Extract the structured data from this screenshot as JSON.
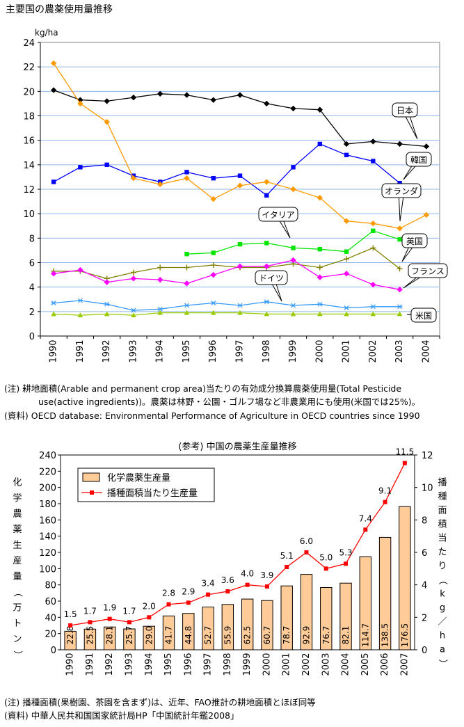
{
  "page_title": "主要国の農薬使用量推移",
  "notes1": [
    "(注) 耕地面積(Arable and permanent crop area)当たりの有効成分換算農薬使用量(Total Pesticide",
    "use(active ingredients))。農薬は林野・公園・ゴルフ場など非農業用にも使用(米国では25%)。",
    "(資料) OECD database: Environmental Performance of Agriculture in OECD countries since 1990"
  ],
  "notes2": [
    "(注) 播種面積(果樹園、茶園を含まず)は、近年、FAO推計の耕地面積とほぼ同等",
    "(資料) 中華人民共和国国家統計局HP「中国統計年鑑2008」"
  ],
  "chart_data": [
    {
      "type": "line",
      "title": "",
      "unit": "kg/ha",
      "x": [
        1990,
        1991,
        1992,
        1993,
        1994,
        1995,
        1996,
        1997,
        1998,
        1999,
        2000,
        2001,
        2002,
        2003,
        2004
      ],
      "ylim": [
        0,
        24
      ],
      "yticks": [
        0,
        2,
        4,
        6,
        8,
        10,
        12,
        14,
        16,
        18,
        20,
        22,
        24
      ],
      "grid": true,
      "series": [
        {
          "name": "日本",
          "color": "#000000",
          "marker": "diamond",
          "values": [
            20.1,
            19.3,
            19.2,
            19.5,
            19.8,
            19.7,
            19.3,
            19.7,
            19.0,
            18.6,
            18.5,
            15.7,
            15.9,
            15.7,
            15.5
          ]
        },
        {
          "name": "韓国",
          "color": "#0000ff",
          "marker": "square",
          "values": [
            12.6,
            13.8,
            14.0,
            13.1,
            12.6,
            13.4,
            12.9,
            13.1,
            11.5,
            13.8,
            15.7,
            14.8,
            14.3,
            12.5,
            null
          ]
        },
        {
          "name": "オランダ",
          "color": "#ff9900",
          "marker": "diamond",
          "values": [
            22.3,
            19.0,
            17.5,
            12.9,
            12.4,
            12.9,
            11.2,
            12.3,
            12.6,
            12.0,
            11.3,
            9.4,
            9.2,
            8.8,
            9.9
          ]
        },
        {
          "name": "イタリア",
          "color": "#00e600",
          "marker": "square",
          "values": [
            null,
            null,
            null,
            null,
            null,
            6.7,
            6.8,
            7.5,
            7.6,
            7.2,
            7.1,
            6.9,
            8.6,
            7.9,
            null
          ]
        },
        {
          "name": "英国",
          "color": "#808000",
          "marker": "plus",
          "values": [
            5.3,
            5.3,
            4.7,
            5.2,
            5.6,
            5.6,
            5.8,
            5.6,
            5.6,
            5.9,
            5.6,
            6.3,
            7.2,
            5.5,
            null
          ]
        },
        {
          "name": "フランス",
          "color": "#ff00ff",
          "marker": "diamond",
          "values": [
            5.1,
            5.4,
            4.4,
            4.7,
            4.6,
            4.3,
            5.0,
            5.7,
            5.7,
            6.2,
            4.8,
            5.1,
            4.2,
            3.8,
            null
          ]
        },
        {
          "name": "ドイツ",
          "color": "#3399ff",
          "marker": "star",
          "values": [
            2.7,
            2.9,
            2.6,
            2.1,
            2.2,
            2.5,
            2.7,
            2.5,
            2.8,
            2.5,
            2.6,
            2.3,
            2.4,
            2.4,
            null
          ]
        },
        {
          "name": "米国",
          "color": "#99cc00",
          "marker": "triangle",
          "values": [
            1.8,
            1.7,
            1.8,
            1.7,
            1.9,
            1.9,
            1.9,
            1.9,
            1.8,
            1.8,
            1.8,
            1.8,
            1.8,
            1.8,
            null
          ]
        }
      ]
    },
    {
      "type": "bar",
      "title": "(参考) 中国の農薬生産量推移",
      "categories": [
        "1990",
        "1991",
        "1992",
        "1993",
        "1994",
        "1995",
        "1996",
        "1997",
        "1998",
        "1999",
        "2000",
        "2001",
        "2002",
        "2003",
        "2004",
        "2005",
        "2006",
        "2007"
      ],
      "ylabel": "化学農薬生産量（万トン）",
      "y2label": "播種面積当たり（kg／ha）",
      "ylim": [
        0,
        240
      ],
      "yticks": [
        0,
        20,
        40,
        60,
        80,
        100,
        120,
        140,
        160,
        180,
        200,
        220,
        240
      ],
      "y2lim": [
        0,
        12
      ],
      "y2ticks": [
        0,
        2,
        4,
        6,
        8,
        10,
        12
      ],
      "legend_position": "top-left",
      "grid": false,
      "series": [
        {
          "name": "化学農薬生産量",
          "kind": "bar",
          "color": "#ffcc99",
          "edge": "#000000",
          "values": [
            22.8,
            25.5,
            28.1,
            25.7,
            29.0,
            41.7,
            44.8,
            52.7,
            55.9,
            62.5,
            60.7,
            78.7,
            92.9,
            76.7,
            82.1,
            114.7,
            138.5,
            176.5
          ]
        },
        {
          "name": "播種面積当たり生産量",
          "kind": "line",
          "axis": "right",
          "color": "#ff0000",
          "values": [
            1.5,
            1.7,
            1.9,
            1.7,
            2.0,
            2.8,
            2.9,
            3.4,
            3.6,
            4.0,
            3.9,
            5.1,
            6.0,
            5.0,
            5.3,
            7.4,
            9.1,
            11.5
          ]
        }
      ]
    }
  ]
}
